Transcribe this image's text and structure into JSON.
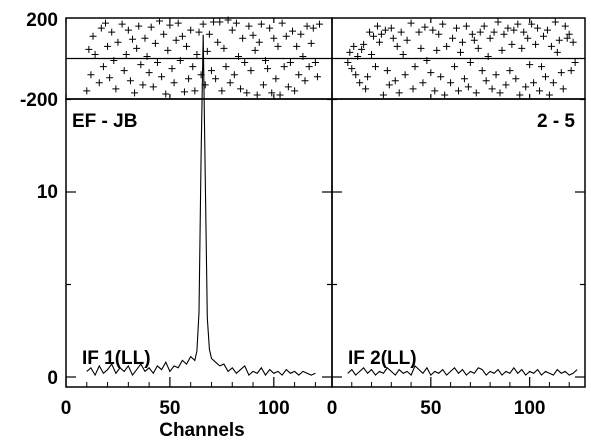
{
  "chart_data": {
    "type": "line",
    "title": "",
    "baseline": "EF - JB",
    "source": "2 - 5",
    "xlabel": "Channels",
    "phase_panel": {
      "ylim": [
        -200,
        200
      ],
      "yticks": [
        "200",
        "-200"
      ],
      "marker": "+"
    },
    "amplitude_panel": {
      "ylim": [
        -0.3,
        19.2
      ],
      "yticks": [
        "0",
        "10"
      ]
    },
    "panels": [
      {
        "label": "IF 1(LL)",
        "xlim": [
          0,
          128
        ],
        "xticks": [
          "0",
          "50",
          "100"
        ],
        "amplitude": {
          "x": [
            10,
            12,
            14,
            16,
            18,
            20,
            22,
            24,
            26,
            28,
            30,
            32,
            34,
            36,
            38,
            40,
            42,
            44,
            46,
            48,
            50,
            52,
            54,
            56,
            58,
            60,
            62,
            63,
            64,
            65,
            66,
            67,
            68,
            69,
            70,
            72,
            74,
            76,
            78,
            80,
            82,
            84,
            86,
            88,
            90,
            92,
            94,
            96,
            98,
            100,
            102,
            104,
            106,
            108,
            110,
            112,
            114,
            116,
            118,
            120
          ],
          "y": [
            0.3,
            0.5,
            0.1,
            0.6,
            0.2,
            0.4,
            0.7,
            0.2,
            0.5,
            0.3,
            0.6,
            0.1,
            0.4,
            0.7,
            0.3,
            0.5,
            0.2,
            0.6,
            0.4,
            0.8,
            0.3,
            0.6,
            0.5,
            0.9,
            0.7,
            1.1,
            0.9,
            1.4,
            3.5,
            12,
            18.5,
            11,
            3.2,
            1.5,
            1.0,
            0.8,
            0.6,
            0.7,
            0.3,
            0.5,
            0.2,
            0.4,
            0.6,
            0.1,
            0.3,
            0.2,
            0.5,
            0.1,
            0.4,
            0.2,
            0.3,
            0.1,
            0.4,
            0.2,
            0.3,
            0.1,
            0.3,
            0.2,
            0.1,
            0.2
          ]
        },
        "phase": {
          "x": [
            10,
            11,
            12,
            13,
            14,
            16,
            17,
            18,
            19,
            20,
            21,
            22,
            23,
            24,
            25,
            27,
            28,
            29,
            30,
            31,
            32,
            33,
            34,
            35,
            36,
            37,
            38,
            39,
            40,
            41,
            42,
            43,
            44,
            45,
            46,
            47,
            48,
            49,
            50,
            51,
            52,
            53,
            54,
            55,
            56,
            57,
            58,
            59,
            60,
            61,
            62,
            63,
            64,
            65,
            66,
            67,
            68,
            69,
            70,
            71,
            72,
            73,
            74,
            75,
            76,
            77,
            78,
            79,
            80,
            81,
            82,
            83,
            84,
            85,
            86,
            87,
            88,
            89,
            90,
            91,
            92,
            93,
            94,
            95,
            96,
            97,
            98,
            99,
            100,
            101,
            102,
            103,
            104,
            105,
            106,
            107,
            108,
            109,
            110,
            111,
            112,
            113,
            114,
            115,
            116,
            117,
            118,
            119,
            120,
            121,
            122
          ],
          "y": [
            -160,
            45,
            -80,
            110,
            20,
            -120,
            150,
            -40,
            175,
            60,
            -95,
            130,
            -10,
            -150,
            80,
            170,
            -60,
            20,
            140,
            -110,
            95,
            -170,
            50,
            160,
            -30,
            -130,
            100,
            10,
            -70,
            155,
            -140,
            75,
            -20,
            185,
            -90,
            120,
            -175,
            40,
            165,
            -50,
            -120,
            90,
            175,
            -10,
            110,
            -165,
            60,
            -100,
            140,
            -40,
            -160,
            20,
            130,
            -80,
            170,
            -130,
            35,
            120,
            -60,
            180,
            -100,
            80,
            180,
            -160,
            50,
            -40,
            190,
            -120,
            140,
            -80,
            175,
            10,
            -150,
            100,
            -20,
            -170,
            160,
            -60,
            115,
            40,
            -180,
            80,
            170,
            -130,
            -10,
            -50,
            150,
            -170,
            100,
            -100,
            60,
            -180,
            175,
            -40,
            110,
            -140,
            -20,
            135,
            -160,
            60,
            -80,
            120,
            10,
            -110,
            160,
            -40,
            75,
            150,
            -20,
            -90,
            170
          ]
        }
      },
      {
        "label": "IF 2(LL)",
        "xlim": [
          0,
          128
        ],
        "xticks": [
          "0",
          "50",
          "100"
        ],
        "amplitude": {
          "x": [
            8,
            10,
            12,
            14,
            16,
            18,
            20,
            22,
            24,
            26,
            28,
            30,
            32,
            34,
            36,
            38,
            40,
            42,
            44,
            46,
            48,
            50,
            52,
            54,
            56,
            58,
            60,
            62,
            64,
            66,
            68,
            70,
            72,
            74,
            76,
            78,
            80,
            82,
            84,
            86,
            88,
            90,
            92,
            94,
            96,
            98,
            100,
            102,
            104,
            106,
            108,
            110,
            112,
            114,
            116,
            118,
            120,
            122,
            124
          ],
          "y": [
            0.2,
            0.4,
            0.1,
            0.3,
            0.5,
            0.2,
            0.4,
            0.1,
            0.3,
            0.2,
            0.5,
            0.3,
            0.1,
            0.4,
            0.2,
            0.3,
            0.1,
            0.6,
            0.4,
            0.2,
            0.5,
            0.1,
            0.3,
            0.2,
            0.4,
            0.1,
            0.3,
            0.5,
            0.2,
            0.4,
            0.1,
            0.3,
            0.2,
            0.5,
            0.4,
            0.1,
            0.3,
            0.2,
            0.4,
            0.1,
            0.3,
            0.2,
            0.5,
            0.2,
            0.4,
            0.1,
            0.3,
            0.2,
            0.4,
            0.1,
            0.3,
            0.2,
            0.1,
            0.4,
            0.2,
            0.3,
            0.1,
            0.2,
            0.4
          ]
        },
        "phase": {
          "x": [
            8,
            9,
            10,
            11,
            12,
            13,
            14,
            15,
            16,
            17,
            18,
            19,
            20,
            21,
            22,
            23,
            24,
            25,
            26,
            27,
            28,
            29,
            30,
            31,
            32,
            33,
            34,
            35,
            36,
            37,
            38,
            40,
            41,
            42,
            44,
            45,
            46,
            47,
            48,
            50,
            51,
            52,
            53,
            54,
            55,
            56,
            57,
            58,
            60,
            61,
            62,
            63,
            64,
            65,
            66,
            67,
            68,
            69,
            70,
            71,
            72,
            73,
            74,
            75,
            76,
            77,
            78,
            79,
            80,
            81,
            82,
            83,
            84,
            85,
            86,
            87,
            88,
            89,
            90,
            91,
            92,
            93,
            94,
            95,
            96,
            97,
            98,
            99,
            100,
            101,
            102,
            103,
            104,
            105,
            106,
            107,
            108,
            109,
            110,
            111,
            112,
            113,
            114,
            115,
            116,
            117,
            118,
            119,
            120,
            121,
            122,
            123
          ],
          "y": [
            -20,
            30,
            -50,
            60,
            -80,
            10,
            -120,
            45,
            70,
            -150,
            -90,
            130,
            20,
            110,
            -40,
            160,
            80,
            120,
            -180,
            140,
            -60,
            -130,
            150,
            100,
            -110,
            60,
            -170,
            130,
            20,
            -80,
            90,
            175,
            -150,
            -40,
            130,
            50,
            -120,
            155,
            -10,
            -70,
            140,
            -160,
            40,
            120,
            -90,
            170,
            -180,
            60,
            -120,
            100,
            -40,
            150,
            -160,
            30,
            80,
            -100,
            160,
            -140,
            -20,
            120,
            90,
            -170,
            50,
            130,
            -60,
            160,
            -110,
            10,
            100,
            -150,
            130,
            -80,
            180,
            -170,
            40,
            120,
            -130,
            150,
            -60,
            70,
            140,
            -100,
            170,
            -180,
            50,
            130,
            -140,
            100,
            -30,
            170,
            -120,
            70,
            150,
            -160,
            -40,
            110,
            -90,
            140,
            -180,
            60,
            -120,
            180,
            30,
            90,
            -70,
            -150,
            160,
            100,
            120,
            -60,
            80,
            -20
          ]
        }
      }
    ]
  }
}
